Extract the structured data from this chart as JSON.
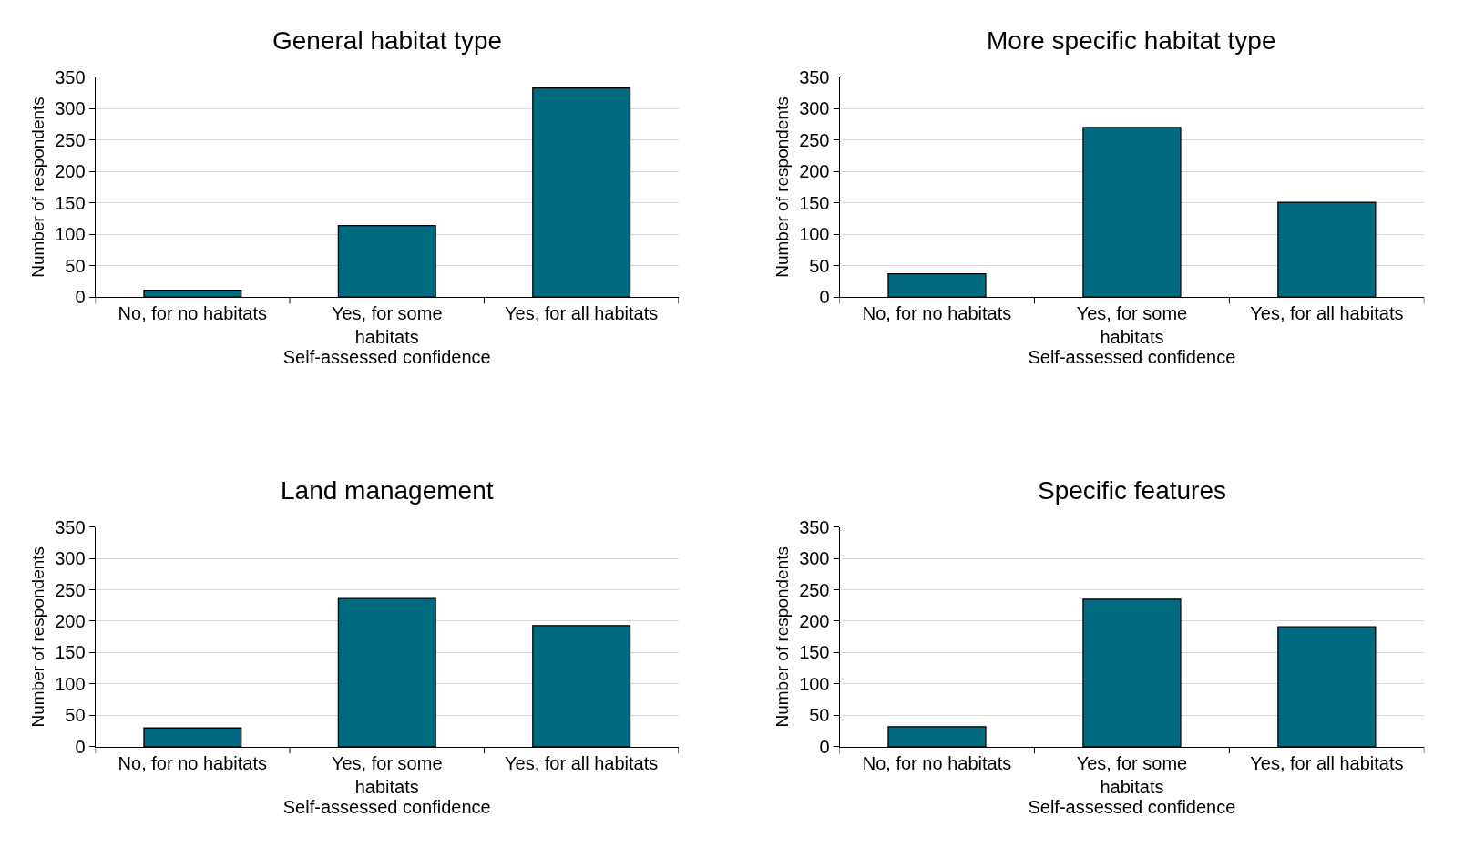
{
  "chart_data": [
    {
      "type": "bar",
      "title": "General habitat type",
      "xlabel": "Self-assessed confidence",
      "ylabel": "Number of respondents",
      "categories": [
        "No, for no habitats",
        "Yes, for some habitats",
        "Yes, for all habitats"
      ],
      "values": [
        11,
        114,
        333
      ],
      "color": "#006a80",
      "ylim": [
        0,
        350
      ],
      "yticks": [
        0,
        50,
        100,
        150,
        200,
        250,
        300,
        350
      ],
      "grid": "y"
    },
    {
      "type": "bar",
      "title": "More specific habitat type",
      "xlabel": "Self-assessed confidence",
      "ylabel": "Number of respondents",
      "categories": [
        "No, for no habitats",
        "Yes, for some habitats",
        "Yes, for all habitats"
      ],
      "values": [
        37,
        270,
        151
      ],
      "color": "#006a80",
      "ylim": [
        0,
        350
      ],
      "yticks": [
        0,
        50,
        100,
        150,
        200,
        250,
        300,
        350
      ],
      "grid": "y"
    },
    {
      "type": "bar",
      "title": "Land management",
      "xlabel": "Self-assessed confidence",
      "ylabel": "Number of respondents",
      "categories": [
        "No, for no habitats",
        "Yes, for some habitats",
        "Yes, for all habitats"
      ],
      "values": [
        30,
        236,
        193
      ],
      "color": "#006a80",
      "ylim": [
        0,
        350
      ],
      "yticks": [
        0,
        50,
        100,
        150,
        200,
        250,
        300,
        350
      ],
      "grid": "y"
    },
    {
      "type": "bar",
      "title": "Specific features",
      "xlabel": "Self-assessed confidence",
      "ylabel": "Number of respondents",
      "categories": [
        "No, for no habitats",
        "Yes, for some habitats",
        "Yes, for all habitats"
      ],
      "values": [
        32,
        235,
        191
      ],
      "color": "#006a80",
      "ylim": [
        0,
        350
      ],
      "yticks": [
        0,
        50,
        100,
        150,
        200,
        250,
        300,
        350
      ],
      "grid": "y"
    }
  ]
}
